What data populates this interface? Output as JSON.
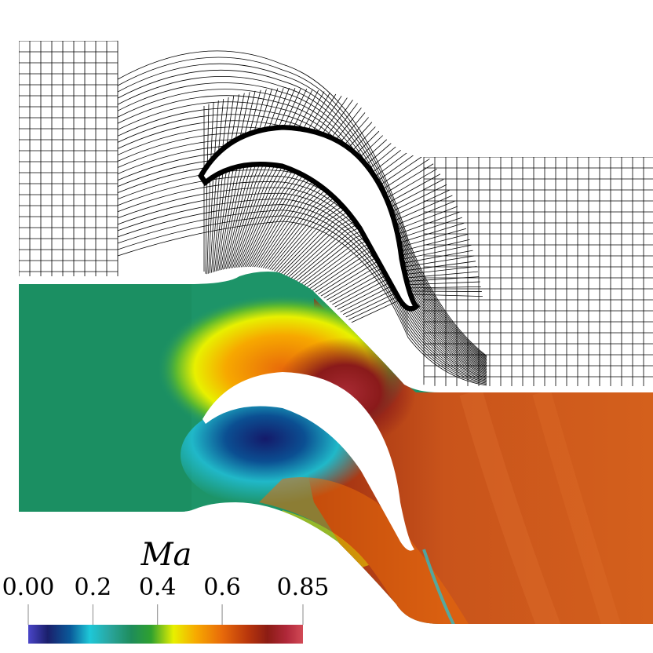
{
  "figure": {
    "description_visible_only": true,
    "colorbar": {
      "title": "Ma",
      "ticks": [
        {
          "value": 0.0,
          "label": "0.00"
        },
        {
          "value": 0.2,
          "label": "0.2"
        },
        {
          "value": 0.4,
          "label": "0.4"
        },
        {
          "value": 0.6,
          "label": "0.6"
        },
        {
          "value": 0.85,
          "label": "0.85"
        }
      ],
      "range": [
        0.0,
        0.85
      ],
      "colormap_stops": [
        {
          "value": 0.0,
          "color": "#4a45c8"
        },
        {
          "value": 0.06,
          "color": "#1a1f6b"
        },
        {
          "value": 0.13,
          "color": "#0a5a9a"
        },
        {
          "value": 0.19,
          "color": "#1ec8d8"
        },
        {
          "value": 0.25,
          "color": "#2aa6a0"
        },
        {
          "value": 0.32,
          "color": "#1e8c5a"
        },
        {
          "value": 0.38,
          "color": "#2fa12f"
        },
        {
          "value": 0.45,
          "color": "#e8f000"
        },
        {
          "value": 0.52,
          "color": "#f7a800"
        },
        {
          "value": 0.6,
          "color": "#e86a0a"
        },
        {
          "value": 0.68,
          "color": "#b8360c"
        },
        {
          "value": 0.74,
          "color": "#8c1c14"
        },
        {
          "value": 0.8,
          "color": "#b0283a"
        },
        {
          "value": 0.85,
          "color": "#d24a56"
        }
      ]
    },
    "colors": {
      "mesh_line": "#000000",
      "background": "#ffffff",
      "passage_green": "#1d9468",
      "wake_orange": "#c9541b",
      "suction_red": "#8a1a1a",
      "pressure_blue": "#1a2a8a"
    }
  }
}
